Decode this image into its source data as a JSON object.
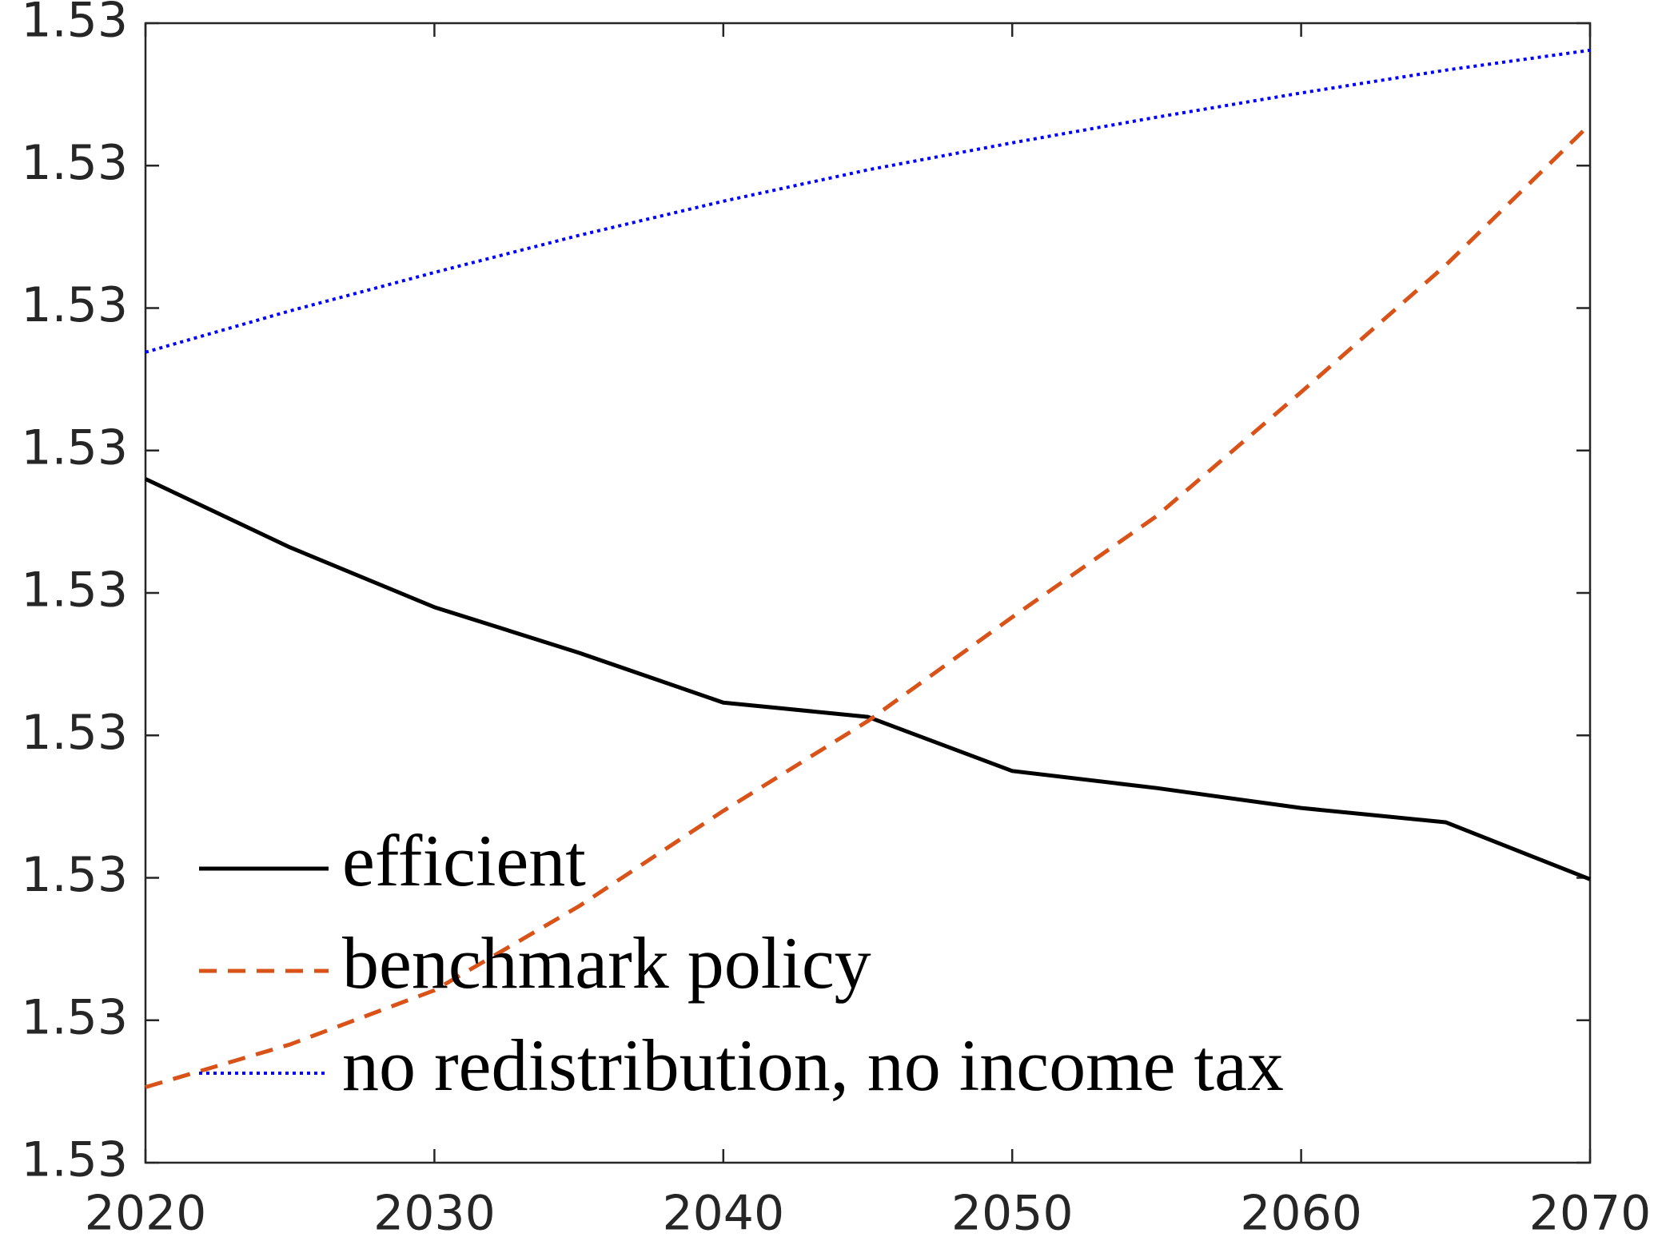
{
  "chart_data": {
    "type": "line",
    "x": [
      2020,
      2025,
      2030,
      2035,
      2040,
      2045,
      2050,
      2055,
      2060,
      2065,
      2070
    ],
    "series": [
      {
        "name": "efficient",
        "color": "#000000",
        "dash": "solid",
        "values": [
          1.53008,
          1.530032,
          1.52999,
          1.529958,
          1.529923,
          1.529913,
          1.529875,
          1.529863,
          1.529849,
          1.529839,
          1.529799
        ]
      },
      {
        "name": "benchmark policy",
        "color": "#d95319",
        "dash": "dashed",
        "values": [
          1.529653,
          1.529683,
          1.529721,
          1.52978,
          1.529847,
          1.52991,
          1.529983,
          1.530054,
          1.530141,
          1.53023,
          1.530329
        ]
      },
      {
        "name": "no redistribution, no income tax",
        "color": "#0000ff",
        "dash": "dotted",
        "values": [
          1.530169,
          1.530198,
          1.530225,
          1.530251,
          1.530275,
          1.530297,
          1.530316,
          1.530334,
          1.530351,
          1.530367,
          1.530381
        ]
      }
    ],
    "xlim": [
      2020,
      2070
    ],
    "xticks": [
      2020,
      2030,
      2040,
      2050,
      2060,
      2070
    ],
    "ylim": [
      1.5296,
      1.5304
    ],
    "yticks": [
      {
        "value": 1.5296,
        "label": "1.53"
      },
      {
        "value": 1.5297,
        "label": "1.53"
      },
      {
        "value": 1.5298,
        "label": "1.53"
      },
      {
        "value": 1.5299,
        "label": "1.53"
      },
      {
        "value": 1.53,
        "label": "1.53"
      },
      {
        "value": 1.5301,
        "label": "1.53"
      },
      {
        "value": 1.5302,
        "label": "1.53"
      },
      {
        "value": 1.5303,
        "label": "1.53"
      },
      {
        "value": 1.5304,
        "label": "1.53"
      }
    ],
    "grid": false,
    "legend": "lower-left"
  }
}
